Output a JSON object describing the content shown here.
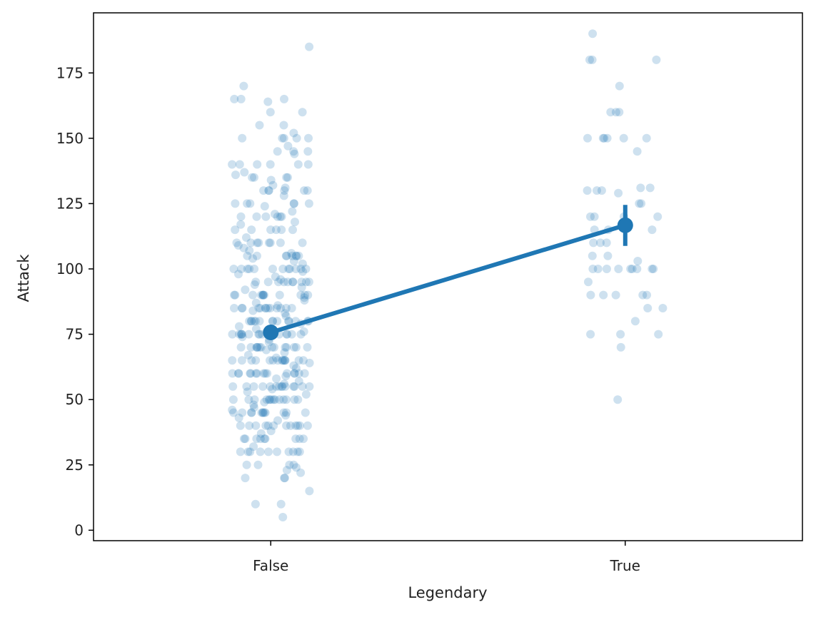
{
  "chart_data": {
    "type": "scatter",
    "title": "",
    "xlabel": "Legendary",
    "ylabel": "Attack",
    "categories": [
      "False",
      "True"
    ],
    "ylim": [
      -4,
      198
    ],
    "yticks": [
      0,
      25,
      50,
      75,
      100,
      125,
      150,
      175
    ],
    "grid": false,
    "legend": "none",
    "colors": {
      "point": "#1f77b4",
      "line": "#1f77b4"
    },
    "strip_points": {
      "False": [
        5,
        10,
        10,
        15,
        20,
        20,
        20,
        22,
        23,
        24,
        25,
        25,
        25,
        25,
        30,
        30,
        30,
        30,
        30,
        30,
        30,
        30,
        30,
        30,
        32,
        35,
        35,
        35,
        35,
        35,
        35,
        35,
        35,
        35,
        37,
        38,
        40,
        40,
        40,
        40,
        40,
        40,
        40,
        40,
        40,
        40,
        40,
        40,
        42,
        43,
        44,
        45,
        45,
        45,
        45,
        45,
        45,
        45,
        45,
        45,
        45,
        45,
        45,
        46,
        47,
        48,
        49,
        50,
        50,
        50,
        50,
        50,
        50,
        50,
        50,
        50,
        50,
        50,
        50,
        50,
        50,
        52,
        53,
        54,
        55,
        55,
        55,
        55,
        55,
        55,
        55,
        55,
        55,
        55,
        55,
        55,
        55,
        55,
        56,
        57,
        58,
        59,
        60,
        60,
        60,
        60,
        60,
        60,
        60,
        60,
        60,
        60,
        60,
        60,
        60,
        60,
        60,
        62,
        63,
        64,
        65,
        65,
        65,
        65,
        65,
        65,
        65,
        65,
        65,
        65,
        65,
        65,
        65,
        65,
        66,
        67,
        68,
        69,
        70,
        70,
        70,
        70,
        70,
        70,
        70,
        70,
        70,
        70,
        70,
        70,
        70,
        70,
        72,
        73,
        74,
        75,
        75,
        75,
        75,
        75,
        75,
        75,
        75,
        75,
        75,
        75,
        75,
        75,
        75,
        75,
        76,
        77,
        78,
        79,
        80,
        80,
        80,
        80,
        80,
        80,
        80,
        80,
        80,
        80,
        80,
        80,
        80,
        80,
        82,
        83,
        84,
        85,
        85,
        85,
        85,
        85,
        85,
        85,
        85,
        85,
        85,
        85,
        85,
        85,
        86,
        87,
        88,
        89,
        90,
        90,
        90,
        90,
        90,
        90,
        90,
        90,
        90,
        90,
        90,
        90,
        92,
        93,
        94,
        95,
        95,
        95,
        95,
        95,
        95,
        95,
        95,
        95,
        95,
        96,
        97,
        98,
        99,
        100,
        100,
        100,
        100,
        100,
        100,
        100,
        100,
        100,
        100,
        100,
        100,
        102,
        103,
        104,
        105,
        105,
        105,
        105,
        105,
        105,
        105,
        105,
        106,
        107,
        108,
        109,
        110,
        110,
        110,
        110,
        110,
        110,
        110,
        110,
        112,
        115,
        115,
        115,
        115,
        115,
        115,
        117,
        118,
        120,
        120,
        120,
        120,
        120,
        120,
        121,
        122,
        124,
        125,
        125,
        125,
        125,
        125,
        125,
        128,
        130,
        130,
        130,
        130,
        130,
        130,
        131,
        132,
        134,
        135,
        135,
        135,
        135,
        136,
        137,
        140,
        140,
        140,
        140,
        140,
        140,
        144,
        145,
        145,
        145,
        147,
        150,
        150,
        150,
        150,
        150,
        152,
        155,
        155,
        160,
        160,
        164,
        165,
        165,
        165,
        170,
        185
      ],
      "True": [
        50,
        70,
        75,
        75,
        75,
        80,
        85,
        85,
        90,
        90,
        90,
        90,
        90,
        95,
        100,
        100,
        100,
        100,
        100,
        100,
        100,
        100,
        100,
        103,
        105,
        105,
        110,
        110,
        110,
        115,
        115,
        115,
        120,
        120,
        120,
        120,
        125,
        125,
        129,
        130,
        130,
        130,
        131,
        131,
        145,
        150,
        150,
        150,
        150,
        150,
        150,
        160,
        160,
        160,
        170,
        180,
        180,
        180,
        190
      ]
    },
    "point_estimates": [
      {
        "category": "False",
        "mean": 75.7,
        "ci": [
          73.0,
          78.4
        ]
      },
      {
        "category": "True",
        "mean": 116.7,
        "ci": [
          108.8,
          124.5
        ]
      }
    ]
  }
}
